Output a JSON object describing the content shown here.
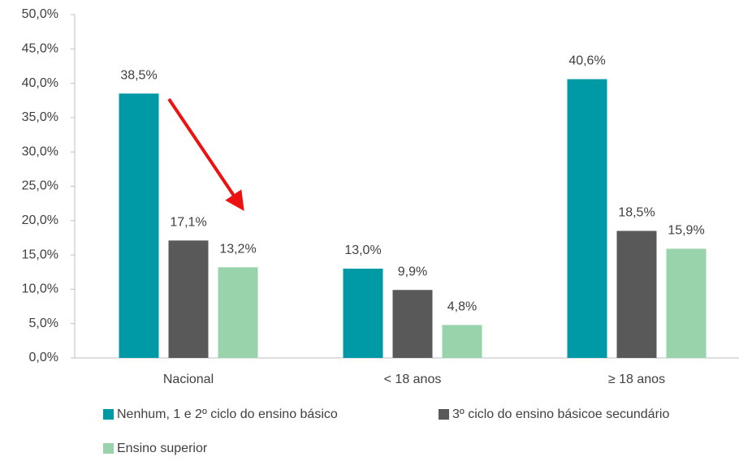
{
  "chart_data": {
    "type": "bar",
    "categories": [
      "Nacional",
      "< 18 anos",
      "≥ 18 anos"
    ],
    "series": [
      {
        "name": "Nenhum, 1 e 2º ciclo do ensino básico",
        "color": "#0099a6",
        "values": [
          38.5,
          13.0,
          40.6
        ],
        "value_labels": [
          "38,5%",
          "13,0%",
          "40,6%"
        ]
      },
      {
        "name": "3º ciclo do ensino básicoe secundário",
        "color": "#595959",
        "values": [
          17.1,
          9.9,
          18.5
        ],
        "value_labels": [
          "17,1%",
          "9,9%",
          "18,5%"
        ]
      },
      {
        "name": "Ensino superior",
        "color": "#99d3ab",
        "values": [
          13.2,
          4.8,
          15.9
        ],
        "value_labels": [
          "13,2%",
          "4,8%",
          "15,9%"
        ]
      }
    ],
    "ylim": [
      0,
      50
    ],
    "yticks": [
      {
        "value": 0,
        "label": "0,0%"
      },
      {
        "value": 5,
        "label": "5,0%"
      },
      {
        "value": 10,
        "label": "10,0%"
      },
      {
        "value": 15,
        "label": "15,0%"
      },
      {
        "value": 20,
        "label": "20,0%"
      },
      {
        "value": 25,
        "label": "25,0%"
      },
      {
        "value": 30,
        "label": "30,0%"
      },
      {
        "value": 35,
        "label": "35,0%"
      },
      {
        "value": 40,
        "label": "40,0%"
      },
      {
        "value": 45,
        "label": "45,0%"
      },
      {
        "value": 50,
        "label": "50,0%"
      }
    ],
    "grid": false,
    "legend": "bottom"
  }
}
